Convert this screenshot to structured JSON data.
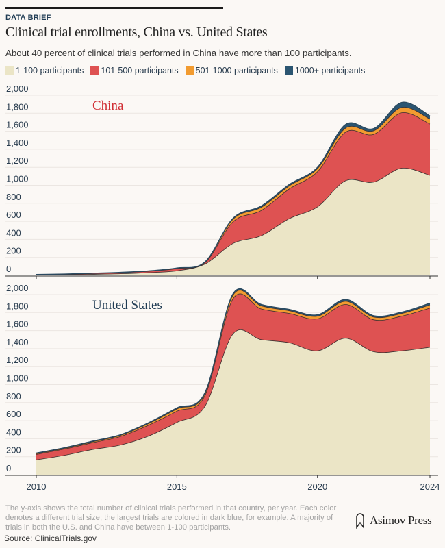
{
  "header": {
    "kicker": "DATA BRIEF",
    "title": "Clinical trial enrollments, China vs. United States",
    "subtitle": "About 40 percent of clinical trials performed in China have more than 100 participants."
  },
  "colors": {
    "1-100": "#ebe5c6",
    "101-500": "#de5252",
    "501-1000": "#f29b30",
    "1000+": "#2b5571",
    "axis_text": "#2a3d4f"
  },
  "legend": [
    {
      "label": "1-100 participants",
      "color": "#ebe5c6"
    },
    {
      "label": "101-500 participants",
      "color": "#de5252"
    },
    {
      "label": "501-1000 participants",
      "color": "#f29b30"
    },
    {
      "label": "1000+ participants",
      "color": "#2b5571"
    }
  ],
  "chart_data": [
    {
      "type": "area",
      "stacked": true,
      "title": "China",
      "title_color": "#d12f35",
      "x": [
        2010,
        2011,
        2012,
        2013,
        2014,
        2015,
        2016,
        2017,
        2018,
        2019,
        2020,
        2021,
        2022,
        2023,
        2024
      ],
      "xticks": [
        "2010",
        "2015",
        "2020",
        "2024"
      ],
      "yticks": [
        "0",
        "200",
        "400",
        "600",
        "800",
        "1,000",
        "1,200",
        "1,400",
        "1,600",
        "1,800",
        "2,000"
      ],
      "ylim": [
        0,
        2000
      ],
      "grid": true,
      "series": [
        {
          "name": "1-100 participants",
          "values": [
            5,
            8,
            12,
            18,
            30,
            50,
            125,
            355,
            440,
            630,
            760,
            1050,
            1035,
            1190,
            1110
          ]
        },
        {
          "name": "101-500 participants",
          "values": [
            3,
            5,
            8,
            12,
            15,
            25,
            15,
            240,
            280,
            330,
            390,
            540,
            530,
            615,
            570
          ]
        },
        {
          "name": "501-1000 participants",
          "values": [
            1,
            1,
            2,
            2,
            3,
            4,
            6,
            30,
            35,
            35,
            35,
            45,
            40,
            60,
            55
          ]
        },
        {
          "name": "1000+ participants",
          "values": [
            1,
            1,
            2,
            2,
            2,
            3,
            4,
            10,
            15,
            15,
            15,
            40,
            25,
            55,
            35
          ]
        }
      ]
    },
    {
      "type": "area",
      "stacked": true,
      "title": "United States",
      "title_color": "#1f3b53",
      "x": [
        2010,
        2011,
        2012,
        2013,
        2014,
        2015,
        2016,
        2017,
        2018,
        2019,
        2020,
        2021,
        2022,
        2023,
        2024
      ],
      "xticks": [
        "2010",
        "2015",
        "2020",
        "2024"
      ],
      "yticks": [
        "0",
        "200",
        "400",
        "600",
        "800",
        "1,000",
        "1,200",
        "1,400",
        "1,600",
        "1,800",
        "2,000"
      ],
      "ylim": [
        0,
        2000
      ],
      "grid": true,
      "series": [
        {
          "name": "1-100 participants",
          "values": [
            165,
            215,
            280,
            330,
            430,
            580,
            760,
            1565,
            1500,
            1465,
            1375,
            1515,
            1365,
            1375,
            1415
          ]
        },
        {
          "name": "101-500 participants",
          "values": [
            60,
            70,
            75,
            95,
            120,
            125,
            120,
            390,
            340,
            325,
            355,
            375,
            355,
            385,
            435
          ]
        },
        {
          "name": "501-1000 participants",
          "values": [
            8,
            8,
            10,
            12,
            18,
            25,
            20,
            40,
            35,
            30,
            30,
            35,
            30,
            30,
            35
          ]
        },
        {
          "name": "1000+ participants",
          "values": [
            7,
            7,
            8,
            8,
            10,
            12,
            12,
            15,
            15,
            15,
            15,
            20,
            15,
            15,
            20
          ]
        }
      ]
    }
  ],
  "footer": {
    "note": "The y-axis shows the total number of clinical trials performed in that country, per year. Each color denotes a different trial size; the largest trials are colored in dark blue, for example. A majority of trials in both the U.S. and China have between 1-100 participants.",
    "source": "Source: ClinicalTrials.gov",
    "brand": "Asimov Press"
  }
}
